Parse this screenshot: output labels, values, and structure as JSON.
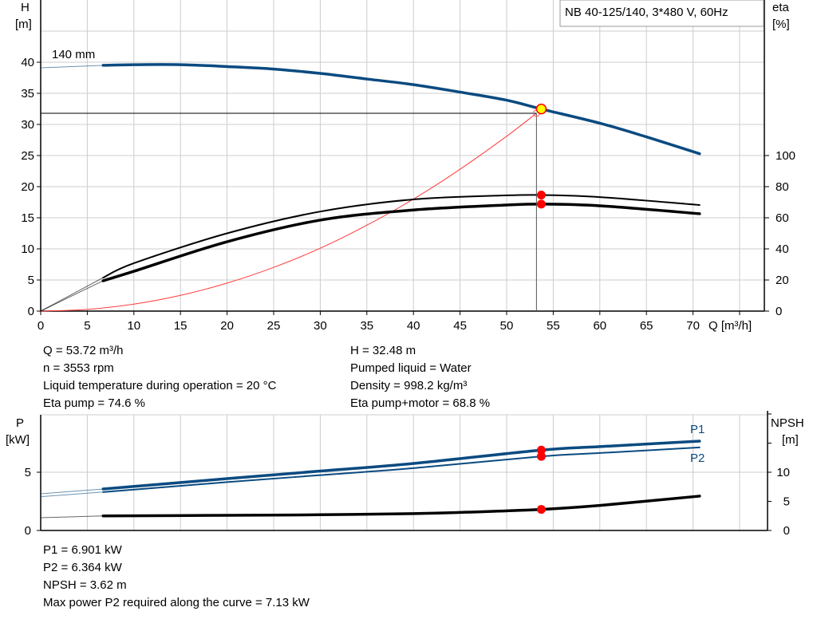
{
  "chart_data": [
    {
      "type": "line",
      "title": "NB 40-125/140, 3*480 V, 60Hz",
      "xlabel": "Q [m³/h]",
      "ylabel": "H\n[m]",
      "ylabel_unit": "[m]",
      "ylabel_name": "H",
      "y2label_name": "eta",
      "y2label_unit": "[%]",
      "xlim": [
        0,
        77.7
      ],
      "ylim": [
        0,
        50
      ],
      "y2lim": [
        0,
        200
      ],
      "grid": true,
      "x_ticks": [
        0,
        5,
        10,
        15,
        20,
        25,
        30,
        35,
        40,
        45,
        50,
        55,
        60,
        65,
        70
      ],
      "y_ticks": [
        0,
        5,
        10,
        15,
        20,
        25,
        30,
        35,
        40
      ],
      "y2_ticks": [
        0,
        20,
        40,
        60,
        80,
        100
      ],
      "curve_label": "140 mm",
      "series": [
        {
          "key": "H",
          "axis": "left",
          "color": "#0a4a80",
          "x": [
            0,
            6.7,
            10,
            15,
            20,
            25,
            30,
            35,
            40,
            45,
            50,
            53.72,
            60,
            65,
            70.7
          ],
          "y": [
            39.1,
            39.5,
            39.6,
            39.6,
            39.3,
            38.9,
            38.2,
            37.3,
            36.4,
            35.2,
            33.9,
            32.48,
            30.2,
            28.0,
            25.3
          ]
        },
        {
          "key": "system",
          "axis": "left",
          "color": "#ff3b3b",
          "x": [
            0,
            5,
            10,
            15,
            20,
            25,
            30,
            35,
            40,
            45,
            50,
            53.2
          ],
          "y": [
            0,
            0.28,
            1.12,
            2.53,
            4.5,
            7.03,
            10.1,
            13.8,
            18.0,
            22.8,
            28.1,
            31.8
          ]
        },
        {
          "key": "eta_pump",
          "axis": "right",
          "color": "#000000",
          "x": [
            0,
            6.7,
            10,
            20,
            30,
            40,
            50,
            53.72,
            60,
            70.7
          ],
          "y": [
            0,
            21.5,
            30.8,
            50,
            64,
            71.8,
            74.4,
            74.6,
            73.3,
            68.2
          ]
        },
        {
          "key": "eta_pump_motor",
          "axis": "right",
          "color": "#000000",
          "x": [
            0,
            6.7,
            10,
            20,
            30,
            40,
            50,
            53.72,
            60,
            70.7
          ],
          "y": [
            0,
            19.5,
            25.6,
            44.6,
            58.5,
            65,
            68.2,
            68.8,
            67.7,
            62.6
          ]
        }
      ],
      "duty_point": {
        "Q": 53.72,
        "H": 32.48,
        "eta_pump": 74.6,
        "eta_pump_motor": 68.8
      },
      "intersection": {
        "Q": 53.2,
        "H": 31.8
      }
    },
    {
      "type": "line",
      "ylabel_name": "P",
      "ylabel_unit": "[kW]",
      "y2label_name": "NPSH",
      "y2label_unit": "[m]",
      "xlim": [
        0,
        77.7
      ],
      "ylim": [
        0,
        9.9
      ],
      "y2lim": [
        0,
        19.8
      ],
      "grid": true,
      "y_ticks": [
        0,
        5
      ],
      "y2_ticks": [
        0,
        5,
        10,
        15,
        20
      ],
      "y2_tick_labels": [
        0,
        5,
        10
      ],
      "series": [
        {
          "name": "P1",
          "axis": "left",
          "color": "#0a4a80",
          "x": [
            0,
            6.7,
            20,
            30,
            40,
            53.72,
            60,
            70.7
          ],
          "y": [
            3.15,
            3.56,
            4.45,
            5.1,
            5.75,
            6.901,
            7.2,
            7.67
          ]
        },
        {
          "name": "P2",
          "axis": "left",
          "color": "#0a4a80",
          "x": [
            0,
            6.7,
            20,
            30,
            40,
            53.72,
            60,
            70.7
          ],
          "y": [
            2.9,
            3.3,
            4.15,
            4.75,
            5.35,
            6.364,
            6.65,
            7.13
          ]
        },
        {
          "key": "NPSH",
          "axis": "right",
          "color": "#000000",
          "x": [
            0,
            6.7,
            20,
            30,
            40,
            45,
            53.72,
            60,
            70.7
          ],
          "y": [
            2.2,
            2.5,
            2.6,
            2.7,
            2.9,
            3.1,
            3.62,
            4.3,
            5.9
          ]
        }
      ],
      "duty_point": {
        "Q": 53.72,
        "P1": 6.901,
        "P2": 6.364,
        "NPSH": 3.62
      }
    }
  ],
  "info_top": {
    "q": "Q = 53.72 m³/h",
    "n": "n = 3553 rpm",
    "temp": "Liquid temperature during operation = 20 °C",
    "eta_pump": "Eta pump = 74.6 %",
    "h": "H = 32.48 m",
    "liquid": "Pumped liquid = Water",
    "density": "Density = 998.2 kg/m³",
    "eta_total": "Eta pump+motor = 68.8 %"
  },
  "info_bottom": {
    "p1": "P1 = 6.901 kW",
    "p2": "P2 = 6.364 kW",
    "npsh": "NPSH = 3.62 m",
    "max_p2": "Max power P2 required along the curve = 7.13 kW"
  },
  "colors": {
    "curve_blue": "#0a4a80",
    "duty_red": "#ff0000",
    "duty_yellow": "#ffff00",
    "grid": "#cccccc"
  }
}
